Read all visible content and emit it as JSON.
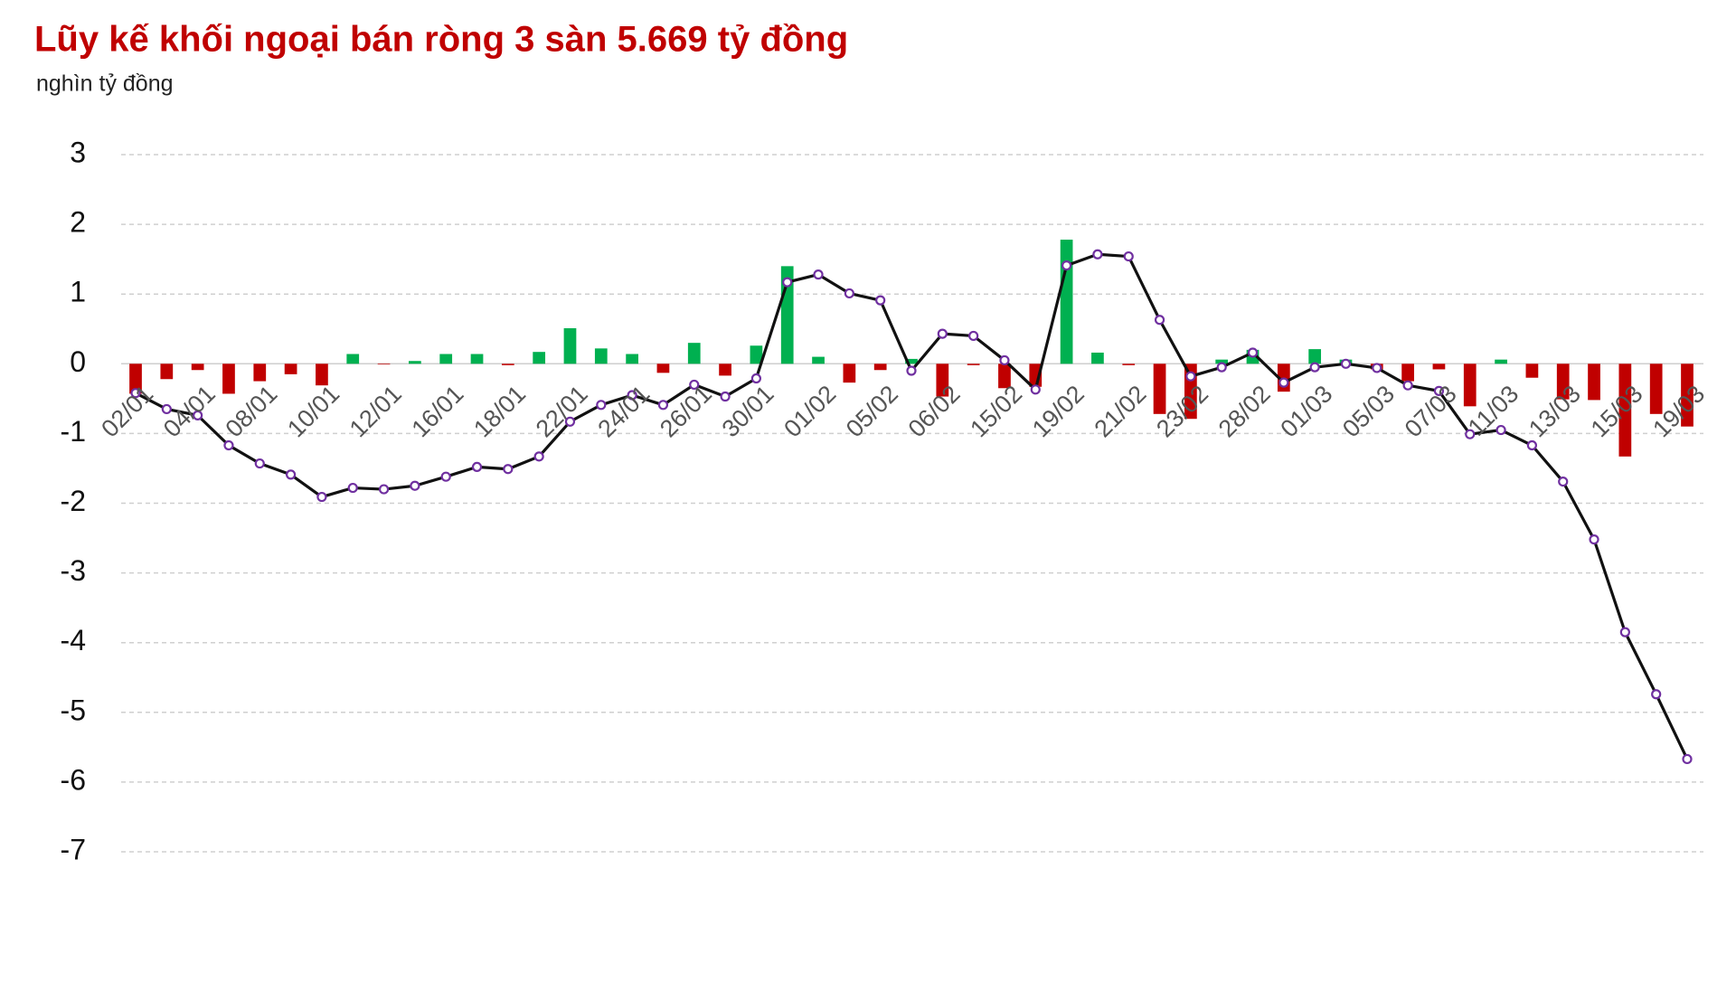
{
  "chart_data": {
    "type": "bar_line",
    "title": "Lũy kế khối ngoại bán ròng 3 sàn 5.669 tỷ đồng",
    "subtitle": "nghìn tỷ đồng",
    "categories": [
      "02/01",
      null,
      "04/01",
      null,
      "08/01",
      null,
      "10/01",
      null,
      "12/01",
      null,
      "16/01",
      null,
      "18/01",
      null,
      "22/01",
      null,
      "24/01",
      null,
      "26/01",
      null,
      "30/01",
      null,
      "01/02",
      null,
      "05/02",
      null,
      "06/02",
      null,
      "15/02",
      null,
      "19/02",
      null,
      "21/02",
      null,
      "23/02",
      null,
      "28/02",
      null,
      "01/03",
      null,
      "05/03",
      null,
      "07/03",
      null,
      "11/03",
      null,
      "13/03",
      null,
      "15/03",
      null,
      "19/03"
    ],
    "series": [
      {
        "type": "bar",
        "positive_color": "#00b050",
        "negative_color": "#c00000",
        "values": [
          -0.43,
          -0.22,
          -0.09,
          -0.43,
          -0.25,
          -0.15,
          -0.31,
          0.14,
          -0.01,
          0.04,
          0.14,
          0.14,
          -0.02,
          0.17,
          0.51,
          0.22,
          0.14,
          -0.13,
          0.3,
          -0.17,
          0.26,
          1.4,
          0.1,
          -0.27,
          -0.09,
          0.07,
          -0.47,
          -0.02,
          -0.35,
          -0.33,
          1.78,
          0.16,
          -0.02,
          -0.72,
          -0.79,
          0.06,
          0.2,
          -0.4,
          0.21,
          0.06,
          -0.08,
          -0.25,
          -0.08,
          -0.61,
          0.06,
          -0.2,
          -0.51,
          -0.52,
          -1.33,
          -0.72,
          -0.9
        ]
      },
      {
        "type": "line",
        "color": "#111111",
        "marker_color": "#7030a0",
        "values": [
          -0.42,
          -0.65,
          -0.74,
          -1.17,
          -1.43,
          -1.59,
          -1.91,
          -1.78,
          -1.8,
          -1.75,
          -1.62,
          -1.48,
          -1.51,
          -1.33,
          -0.83,
          -0.59,
          -0.45,
          -0.59,
          -0.3,
          -0.47,
          -0.21,
          1.17,
          1.28,
          1.01,
          0.91,
          -0.1,
          0.43,
          0.4,
          0.05,
          -0.37,
          1.41,
          1.57,
          1.54,
          0.63,
          -0.18,
          -0.05,
          0.16,
          -0.27,
          -0.05,
          0.0,
          -0.06,
          -0.31,
          -0.39,
          -1.01,
          -0.95,
          -1.17,
          -1.69,
          -2.52,
          -3.85,
          -4.74,
          -5.67
        ]
      }
    ],
    "ylim": [
      -7,
      3
    ],
    "yticks": [
      3,
      2,
      1,
      0,
      -1,
      -2,
      -3,
      -4,
      -5,
      -6,
      -7
    ],
    "grid": true
  }
}
